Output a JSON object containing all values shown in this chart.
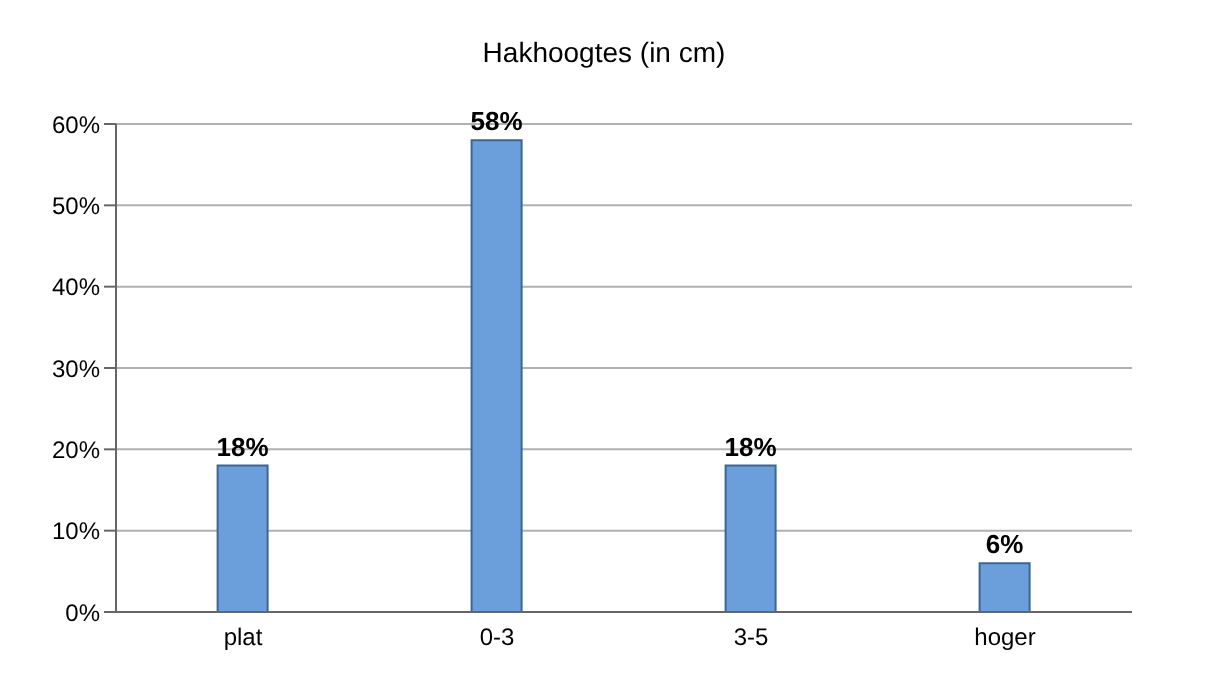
{
  "chart_data": {
    "type": "bar",
    "title": "Hakhoogtes (in cm)",
    "categories": [
      "plat",
      "0-3",
      "3-5",
      "hoger"
    ],
    "values": [
      18,
      58,
      18,
      6
    ],
    "value_labels": [
      "18%",
      "58%",
      "18%",
      "6%"
    ],
    "color": "#6a9fdc",
    "ylim": [
      0,
      60
    ],
    "yticks": [
      {
        "value": 0,
        "label": "0%"
      },
      {
        "value": 10,
        "label": "10%"
      },
      {
        "value": 20,
        "label": "20%"
      },
      {
        "value": 30,
        "label": "30%"
      },
      {
        "value": 40,
        "label": "40%"
      },
      {
        "value": 50,
        "label": "50%"
      },
      {
        "value": 60,
        "label": "60%"
      }
    ],
    "grid": "y"
  }
}
